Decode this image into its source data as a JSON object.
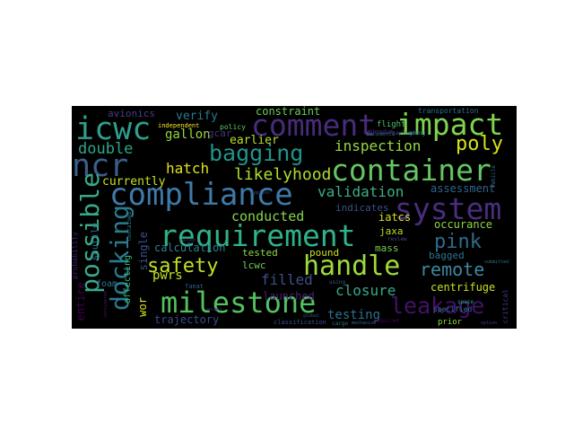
{
  "colors": {
    "background": "#ffffff",
    "cloud_background": "#000000",
    "palette": [
      "#440154",
      "#482878",
      "#3e4989",
      "#31688e",
      "#26828e",
      "#1f9e89",
      "#35b779",
      "#6ece58",
      "#b5de2b",
      "#fde725"
    ]
  },
  "words": [
    {
      "text": "compliance",
      "color": "#3e7aa8"
    },
    {
      "text": "requirement",
      "color": "#2fb28a"
    },
    {
      "text": "milestone",
      "color": "#52c25f"
    },
    {
      "text": "container",
      "color": "#64c562"
    },
    {
      "text": "system",
      "color": "#4a2d7f"
    },
    {
      "text": "comment",
      "color": "#472c7a"
    },
    {
      "text": "impact",
      "color": "#7ed34f"
    },
    {
      "text": "handle",
      "color": "#9fd93a"
    },
    {
      "text": "icwc",
      "color": "#2f9f8d"
    },
    {
      "text": "ncr",
      "color": "#3b5e8c"
    },
    {
      "text": "docking",
      "color": "#2a7b8e"
    },
    {
      "text": "possible",
      "color": "#3aa98b"
    },
    {
      "text": "bagging",
      "color": "#1f948c"
    },
    {
      "text": "leakage",
      "color": "#44116a"
    },
    {
      "text": "safety",
      "color": "#c2df23"
    },
    {
      "text": "pink",
      "color": "#2e6b8e"
    },
    {
      "text": "poly",
      "color": "#d5e21a"
    },
    {
      "text": "double",
      "color": "#2fa68a"
    },
    {
      "text": "remote",
      "color": "#3d88a0"
    },
    {
      "text": "likelyhood",
      "color": "#b0dd2f"
    },
    {
      "text": "inspection",
      "color": "#95d840"
    },
    {
      "text": "hatch",
      "color": "#e0e31a"
    },
    {
      "text": "validation",
      "color": "#3aae84"
    },
    {
      "text": "closure",
      "color": "#35a98a"
    },
    {
      "text": "filled",
      "color": "#3c508a"
    },
    {
      "text": "testing",
      "color": "#2d708e"
    },
    {
      "text": "conducted",
      "color": "#87d549"
    },
    {
      "text": "verify",
      "color": "#2a788e"
    },
    {
      "text": "gallon",
      "color": "#94d741"
    },
    {
      "text": "earlier",
      "color": "#b8de29"
    },
    {
      "text": "constraint",
      "color": "#6ccd5a"
    },
    {
      "text": "avionics",
      "color": "#4a3d88"
    },
    {
      "text": "currently",
      "color": "#c5e021"
    },
    {
      "text": "calculation",
      "color": "#2f7e8e"
    },
    {
      "text": "launched",
      "color": "#482576"
    },
    {
      "text": "trajectory",
      "color": "#3a4c8a"
    },
    {
      "text": "centrifuge",
      "color": "#c8e020"
    },
    {
      "text": "assessment",
      "color": "#31638d"
    },
    {
      "text": "occurance",
      "color": "#8cd644"
    },
    {
      "text": "bagged",
      "color": "#2c728e"
    },
    {
      "text": "iatcs",
      "color": "#d2e21b"
    },
    {
      "text": "jaxa",
      "color": "#b3dc2b"
    },
    {
      "text": "tested",
      "color": "#90d743"
    },
    {
      "text": "pound",
      "color": "#cce11e"
    },
    {
      "text": "mass",
      "color": "#78d152"
    },
    {
      "text": "pwrs",
      "color": "#c9e020"
    },
    {
      "text": "lcwc",
      "color": "#6ece58"
    },
    {
      "text": "foam",
      "color": "#2a788e"
    },
    {
      "text": "entire",
      "color": "#440154"
    },
    {
      "text": "single",
      "color": "#3a548c"
    },
    {
      "text": "shuttle",
      "color": "#2a788e"
    },
    {
      "text": "affecting",
      "color": "#35b779"
    },
    {
      "text": "indicates",
      "color": "#3c4f8a"
    },
    {
      "text": "gcar",
      "color": "#46337f"
    },
    {
      "text": "policy",
      "color": "#5ec962"
    },
    {
      "text": "flight",
      "color": "#4ac16d"
    },
    {
      "text": "transportation",
      "color": "#2c728e"
    },
    {
      "text": "independent",
      "color": "#fde725"
    },
    {
      "text": "addendum",
      "color": "#482475"
    },
    {
      "text": "specified",
      "color": "#2a788e"
    },
    {
      "text": "classification",
      "color": "#3b528b"
    },
    {
      "text": "prior",
      "color": "#8fd744"
    },
    {
      "text": "wor",
      "color": "#d8e219"
    },
    {
      "text": "probability",
      "color": "#481f70"
    },
    {
      "text": "critical",
      "color": "#443a83"
    },
    {
      "text": "faeat",
      "color": "#355f8d"
    },
    {
      "text": "documents",
      "color": "#31688e"
    },
    {
      "text": "payloads",
      "color": "#3e4a89"
    },
    {
      "text": "review",
      "color": "#404688"
    },
    {
      "text": "space",
      "color": "#22a785"
    },
    {
      "text": "using",
      "color": "#38598c"
    },
    {
      "text": "going",
      "color": "#1f9a8a"
    },
    {
      "text": "cargo",
      "color": "#2c728e"
    },
    {
      "text": "required",
      "color": "#46085c"
    },
    {
      "text": "global",
      "color": "#3b518b"
    },
    {
      "text": "mechanism",
      "color": "#32648e"
    },
    {
      "text": "submitted",
      "color": "#2c718e"
    },
    {
      "text": "caused",
      "color": "#482878"
    },
    {
      "text": "applies",
      "color": "#3e4989"
    },
    {
      "text": "weight",
      "color": "#482173"
    },
    {
      "text": "considered",
      "color": "#481668"
    },
    {
      "text": "vehicle",
      "color": "#306a8e"
    },
    {
      "text": "option",
      "color": "#453882"
    },
    {
      "text": "contained",
      "color": "#25858e"
    }
  ]
}
